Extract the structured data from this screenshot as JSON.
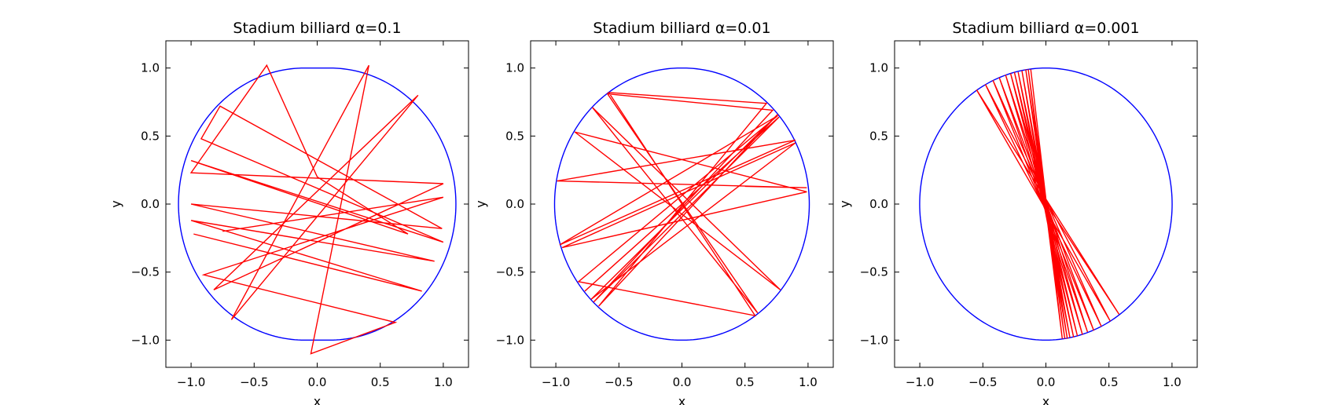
{
  "chart_data": [
    {
      "type": "line",
      "title": "Stadium billiard α=0.1",
      "xlabel": "x",
      "ylabel": "y",
      "xlim": [
        -1.2,
        1.2
      ],
      "ylim": [
        -1.2,
        1.2
      ],
      "xticks": [
        -1.0,
        -0.5,
        0.0,
        0.5,
        1.0
      ],
      "yticks": [
        -1.0,
        -0.5,
        0.0,
        0.5,
        1.0
      ],
      "xtick_labels": [
        "−1.0",
        "−0.5",
        "0.0",
        "0.5",
        "1.0"
      ],
      "ytick_labels": [
        "−1.0",
        "−0.5",
        "0.0",
        "0.5",
        "1.0"
      ],
      "grid": false,
      "boundary": {
        "shape": "stadium",
        "straight_half_length": 0.1,
        "radius": 1.0,
        "color": "#0000ff"
      },
      "trajectory_color": "#ff0000",
      "trajectory": {
        "x": [
          -0.75,
          1.0,
          -0.9,
          0.62,
          -0.05,
          0.41,
          -0.68,
          0.8,
          -0.82,
          1.0,
          -1.0,
          -0.4,
          0.0,
          0.72,
          -1.0,
          1.0,
          -0.92,
          -0.77,
          0.99,
          -1.0,
          0.93,
          -1.0,
          0.83,
          -0.98
        ],
        "y": [
          -0.2,
          0.05,
          -0.52,
          -0.87,
          -1.1,
          1.02,
          -0.85,
          0.8,
          -0.63,
          0.15,
          0.23,
          1.02,
          0.2,
          -0.22,
          0.32,
          -0.28,
          0.48,
          0.72,
          -0.18,
          0.0,
          -0.42,
          -0.12,
          -0.64,
          -0.22
        ]
      }
    },
    {
      "type": "line",
      "title": "Stadium billiard α=0.01",
      "xlabel": "x",
      "ylabel": "y",
      "xlim": [
        -1.2,
        1.2
      ],
      "ylim": [
        -1.2,
        1.2
      ],
      "xticks": [
        -1.0,
        -0.5,
        0.0,
        0.5,
        1.0
      ],
      "yticks": [
        -1.0,
        -0.5,
        0.0,
        0.5,
        1.0
      ],
      "xtick_labels": [
        "−1.0",
        "−0.5",
        "0.0",
        "0.5",
        "1.0"
      ],
      "ytick_labels": [
        "−1.0",
        "−0.5",
        "0.0",
        "0.5",
        "1.0"
      ],
      "grid": false,
      "boundary": {
        "shape": "stadium",
        "straight_half_length": 0.01,
        "radius": 1.0,
        "color": "#0000ff"
      },
      "trajectory_color": "#ff0000",
      "trajectory": {
        "x": [
          0.5,
          0.99,
          -0.99,
          0.9,
          -0.97,
          0.76,
          -0.82,
          0.58,
          -0.58,
          0.67,
          -0.66,
          0.76,
          -0.72,
          0.9,
          -0.95,
          0.99,
          -0.85,
          0.78,
          -0.71,
          0.6,
          -0.59,
          0.72,
          -0.7,
          0.77,
          -0.77
        ],
        "y": [
          0.13,
          0.12,
          0.17,
          0.47,
          -0.3,
          0.65,
          -0.57,
          -0.82,
          0.82,
          0.74,
          -0.75,
          0.66,
          -0.7,
          0.45,
          -0.32,
          0.09,
          0.53,
          -0.63,
          0.71,
          -0.8,
          0.81,
          0.69,
          -0.72,
          0.64,
          -0.64
        ]
      }
    },
    {
      "type": "line",
      "title": "Stadium billiard α=0.001",
      "xlabel": "x",
      "ylabel": "y",
      "xlim": [
        -1.2,
        1.2
      ],
      "ylim": [
        -1.2,
        1.2
      ],
      "xticks": [
        -1.0,
        -0.5,
        0.0,
        0.5,
        1.0
      ],
      "yticks": [
        -1.0,
        -0.5,
        0.0,
        0.5,
        1.0
      ],
      "xtick_labels": [
        "−1.0",
        "−0.5",
        "0.0",
        "0.5",
        "1.0"
      ],
      "ytick_labels": [
        "−1.0",
        "−0.5",
        "0.0",
        "0.5",
        "1.0"
      ],
      "grid": false,
      "boundary": {
        "shape": "stadium",
        "straight_half_length": 0.001,
        "radius": 1.0,
        "color": "#0000ff"
      },
      "trajectory_color": "#ff0000",
      "trajectory": {
        "x": [
          -0.08,
          0.58,
          -0.55,
          0.51,
          -0.48,
          0.44,
          -0.42,
          0.38,
          -0.37,
          0.33,
          -0.32,
          0.29,
          -0.28,
          0.25,
          -0.25,
          0.22,
          -0.22,
          0.19,
          -0.19,
          0.17,
          -0.16,
          0.15,
          -0.14,
          0.13,
          -0.12
        ],
        "y": [
          0.12,
          -0.81,
          0.84,
          -0.86,
          0.88,
          -0.9,
          0.91,
          -0.93,
          0.93,
          -0.94,
          0.95,
          -0.96,
          0.96,
          -0.97,
          0.97,
          -0.98,
          0.97,
          -0.98,
          0.98,
          -0.99,
          0.99,
          -0.99,
          0.99,
          -0.99,
          0.99
        ]
      }
    }
  ]
}
